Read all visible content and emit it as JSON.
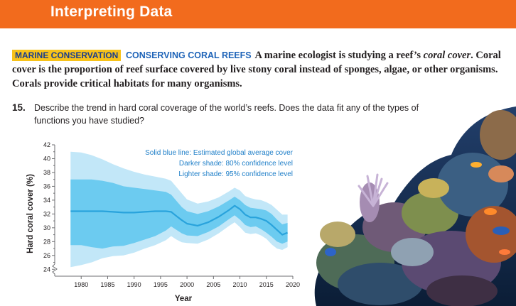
{
  "header": {
    "title": "Interpreting Data"
  },
  "intro": {
    "tag": "MARINE CONSERVATION",
    "topic": "CONSERVING CORAL REEFS",
    "text_before_italic": "A marine ecologist is studying a reef’s",
    "italic_term": "coral cover",
    "text_after_italic": ". Coral cover is the proportion of reef surface covered by live stony coral instead of sponges, algae, or other organisms. Corals provide critical habitats for many organisms."
  },
  "question": {
    "number": "15.",
    "text": "Describe the trend in hard coral coverage of the world’s reefs. Does the data fit any of the types of functions you have studied?"
  },
  "chart_data": {
    "type": "line",
    "xlabel": "Year",
    "ylabel": "Hard coral cover (%)",
    "xlim": [
      1975,
      2020
    ],
    "ylim": [
      23,
      42
    ],
    "x_ticks": [
      1980,
      1985,
      1990,
      1995,
      2000,
      2005,
      2010,
      2015,
      2020
    ],
    "y_ticks": [
      24,
      26,
      28,
      30,
      32,
      34,
      36,
      38,
      40,
      42
    ],
    "axis_break": true,
    "legend": {
      "line1": "Solid blue line: Estimated global average cover",
      "line2": "Darker shade: 80% confidence level",
      "line3": "Lighter shade: 95% confidence level",
      "placement": "top-right"
    },
    "x": [
      1978,
      1980,
      1982,
      1984,
      1986,
      1988,
      1990,
      1992,
      1994,
      1996,
      1997,
      1998,
      1999,
      2000,
      2002,
      2004,
      2006,
      2008,
      2009,
      2010,
      2011,
      2012,
      2013,
      2014,
      2015,
      2016,
      2017,
      2018,
      2019
    ],
    "mean": [
      32.4,
      32.4,
      32.4,
      32.4,
      32.3,
      32.2,
      32.2,
      32.3,
      32.4,
      32.4,
      32.3,
      31.7,
      31.1,
      30.6,
      30.3,
      30.8,
      31.6,
      32.6,
      33.2,
      32.7,
      31.9,
      31.5,
      31.5,
      31.3,
      31.0,
      30.4,
      29.7,
      29.0,
      29.3
    ],
    "ci80_low": [
      27.5,
      27.5,
      27.2,
      27.0,
      27.3,
      27.4,
      27.8,
      28.3,
      28.8,
      29.6,
      30.2,
      29.7,
      29.2,
      28.9,
      28.8,
      29.4,
      30.2,
      31.3,
      31.8,
      31.2,
      30.4,
      30.1,
      30.2,
      29.8,
      29.3,
      28.7,
      28.0,
      27.7,
      28.0
    ],
    "ci80_high": [
      37.0,
      37.0,
      37.0,
      36.8,
      36.5,
      36.0,
      35.8,
      35.6,
      35.4,
      35.2,
      34.8,
      33.9,
      33.0,
      32.4,
      32.0,
      32.4,
      33.1,
      34.0,
      34.5,
      34.0,
      33.3,
      32.9,
      32.8,
      32.7,
      32.5,
      32.0,
      31.2,
      30.5,
      30.7
    ],
    "ci95_low": [
      24.3,
      24.6,
      25.0,
      25.6,
      25.9,
      26.0,
      26.4,
      27.0,
      27.5,
      28.2,
      28.8,
      28.3,
      27.9,
      27.8,
      27.7,
      28.3,
      29.2,
      30.3,
      30.8,
      30.1,
      29.3,
      29.1,
      29.2,
      28.9,
      28.4,
      27.6,
      27.0,
      26.8,
      27.2
    ],
    "ci95_high": [
      41.0,
      40.9,
      40.5,
      39.9,
      39.2,
      38.6,
      38.1,
      37.7,
      37.4,
      37.1,
      36.8,
      35.9,
      35.0,
      34.1,
      33.5,
      33.8,
      34.4,
      35.3,
      35.8,
      35.4,
      34.6,
      34.3,
      34.1,
      34.0,
      33.7,
      33.3,
      32.6,
      31.9,
      31.9
    ],
    "colors": {
      "line": "#29a3dc",
      "ci80": "#6ccbf0",
      "ci95": "#c2e7f8",
      "legend_text": "#1f7fc8",
      "axis": "#6d6e71"
    }
  },
  "photo": {
    "subject": "coral-reef"
  }
}
